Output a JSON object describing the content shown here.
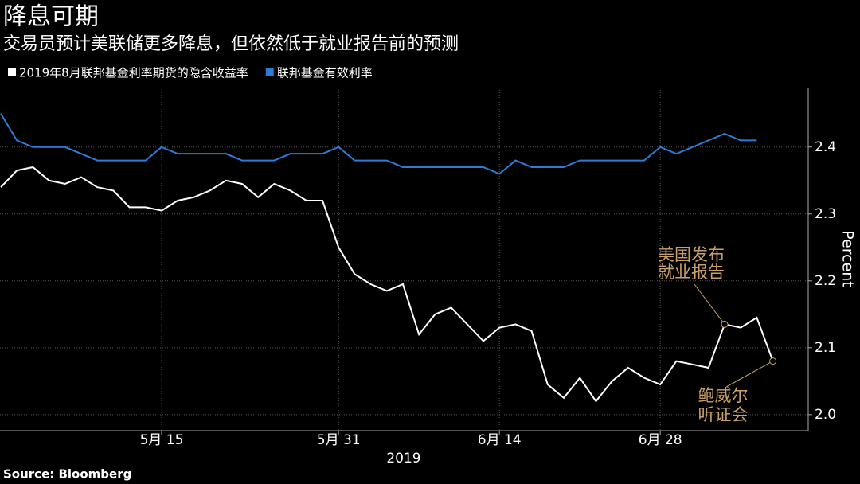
{
  "chart_data": {
    "type": "line",
    "title": "降息可期",
    "subtitle": "交易员预计美联储更多降息，但依然低于就业报告前的预测",
    "categories": [
      null,
      null,
      null,
      null,
      null,
      null,
      null,
      null,
      null,
      null,
      "5月 15",
      null,
      null,
      null,
      null,
      null,
      null,
      null,
      null,
      null,
      null,
      "5月 31",
      null,
      null,
      null,
      null,
      null,
      null,
      null,
      null,
      null,
      "6月 14",
      null,
      null,
      null,
      null,
      null,
      null,
      null,
      null,
      null,
      "6月 28",
      null,
      null,
      null,
      null,
      null,
      null,
      null
    ],
    "xlabel": "2019",
    "ylabel": "Percent",
    "series": [
      {
        "name": "2019年8月联邦基金利率期货的隐含收益率",
        "color": "#ffffff",
        "values": [
          2.34,
          2.365,
          2.37,
          2.35,
          2.345,
          2.355,
          2.34,
          2.335,
          2.31,
          2.31,
          2.305,
          2.32,
          2.325,
          2.335,
          2.35,
          2.345,
          2.325,
          2.345,
          2.335,
          2.32,
          2.32,
          2.25,
          2.21,
          2.195,
          2.185,
          2.195,
          2.12,
          2.15,
          2.16,
          2.135,
          2.11,
          2.13,
          2.135,
          2.125,
          2.045,
          2.025,
          2.055,
          2.02,
          2.05,
          2.07,
          2.055,
          2.045,
          2.08,
          2.075,
          2.07,
          2.135,
          2.13,
          2.145,
          2.08
        ]
      },
      {
        "name": "联邦基金有效利率",
        "color": "#2e7bd6",
        "values": [
          2.45,
          2.41,
          2.4,
          2.4,
          2.4,
          2.39,
          2.38,
          2.38,
          2.38,
          2.38,
          2.4,
          2.39,
          2.39,
          2.39,
          2.39,
          2.38,
          2.38,
          2.38,
          2.39,
          2.39,
          2.39,
          2.4,
          2.38,
          2.38,
          2.38,
          2.37,
          2.37,
          2.37,
          2.37,
          2.37,
          2.37,
          2.36,
          2.38,
          2.37,
          2.37,
          2.37,
          2.38,
          2.38,
          2.38,
          2.38,
          2.38,
          2.4,
          2.39,
          2.4,
          2.41,
          2.42,
          2.41,
          2.41,
          null
        ]
      }
    ],
    "ylim": [
      1.976,
      2.489
    ],
    "yticks": [
      {
        "value": 2,
        "label": "2.0"
      },
      2.1,
      2.2,
      2.3,
      2.4
    ],
    "grid": true,
    "annotations": [
      {
        "lines": [
          "美国发布",
          "就业报告"
        ]
      },
      {
        "lines": [
          "鲍威尔",
          "听证会"
        ]
      }
    ],
    "annotation_color": "#c8a068",
    "source": "Source: Bloomberg"
  }
}
